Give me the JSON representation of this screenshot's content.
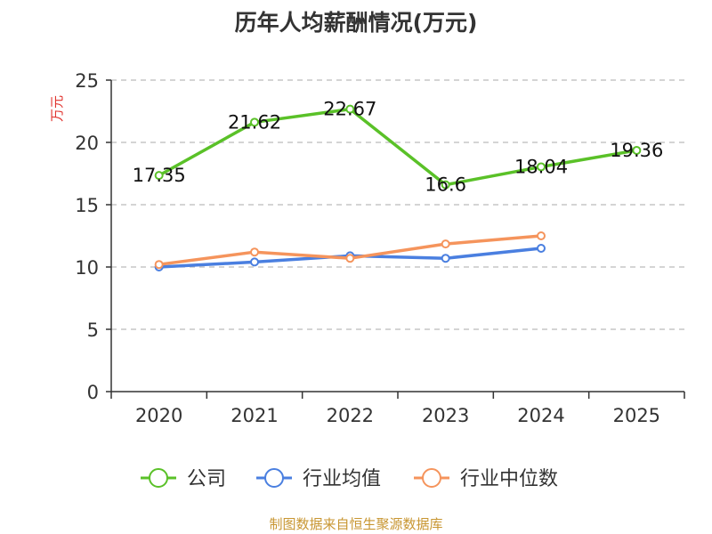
{
  "chart_data": {
    "type": "line",
    "title": "历年人均薪酬情况(万元)",
    "ylabel": "万元",
    "xlabel": "",
    "categories": [
      "2020",
      "2021",
      "2022",
      "2023",
      "2024",
      "2025"
    ],
    "ylim": [
      0,
      25
    ],
    "yticks": [
      0,
      5,
      10,
      15,
      20,
      25
    ],
    "grid": "horizontal dashed",
    "legend_position": "bottom",
    "series": [
      {
        "name": "公司",
        "color": "#5ac128",
        "values": [
          17.35,
          21.62,
          22.67,
          16.6,
          18.04,
          19.36
        ],
        "labels": [
          "17.35",
          "21.62",
          "22.67",
          "16.6",
          "18.04",
          "19.36"
        ]
      },
      {
        "name": "行业均值",
        "color": "#4a7fe0",
        "values": [
          10.0,
          10.4,
          10.9,
          10.7,
          11.5,
          null
        ]
      },
      {
        "name": "行业中位数",
        "color": "#f5945c",
        "values": [
          10.2,
          11.2,
          10.7,
          11.85,
          12.5,
          null
        ]
      }
    ]
  },
  "source": "制图数据来自恒生聚源数据库"
}
